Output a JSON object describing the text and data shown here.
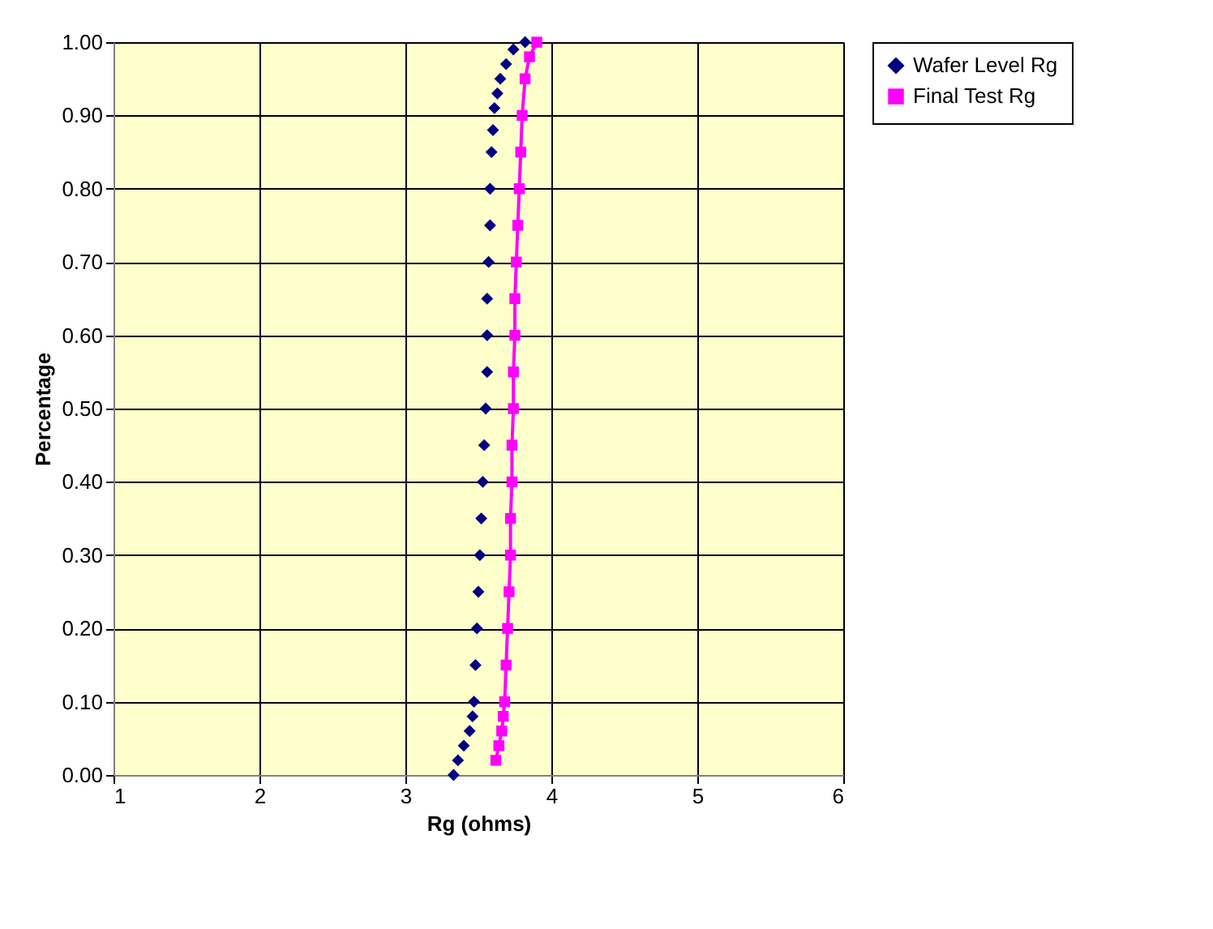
{
  "chart_data": {
    "type": "scatter",
    "xlabel": "Rg (ohms)",
    "ylabel": "Percentage",
    "xlim": [
      1,
      6
    ],
    "xticks": [
      1,
      2,
      3,
      4,
      5,
      6
    ],
    "ylim": [
      0,
      1
    ],
    "yticks": [
      {
        "value": 0,
        "label": "0.00"
      },
      {
        "value": 0.1,
        "label": "0.10"
      },
      {
        "value": 0.2,
        "label": "0.20"
      },
      {
        "value": 0.3,
        "label": "0.30"
      },
      {
        "value": 0.4,
        "label": "0.40"
      },
      {
        "value": 0.5,
        "label": "0.50"
      },
      {
        "value": 0.6,
        "label": "0.60"
      },
      {
        "value": 0.7,
        "label": "0.70"
      },
      {
        "value": 0.8,
        "label": "0.80"
      },
      {
        "value": 0.9,
        "label": "0.90"
      },
      {
        "value": 1,
        "label": "1.00"
      }
    ],
    "grid": true,
    "legend": "right",
    "series": [
      {
        "name": "Wafer Level Rg",
        "marker": "diamond",
        "color": "#000080",
        "x": [
          3.33,
          3.36,
          3.4,
          3.44,
          3.46,
          3.47,
          3.48,
          3.49,
          3.5,
          3.51,
          3.52,
          3.53,
          3.54,
          3.55,
          3.56,
          3.56,
          3.56,
          3.57,
          3.58,
          3.58,
          3.59,
          3.6,
          3.61,
          3.63,
          3.65,
          3.69,
          3.74,
          3.82
        ],
        "values": [
          0.0,
          0.02,
          0.04,
          0.06,
          0.08,
          0.1,
          0.15,
          0.2,
          0.25,
          0.3,
          0.35,
          0.4,
          0.45,
          0.5,
          0.55,
          0.6,
          0.65,
          0.7,
          0.75,
          0.8,
          0.85,
          0.88,
          0.91,
          0.93,
          0.95,
          0.97,
          0.99,
          1.0
        ]
      },
      {
        "name": "Final Test Rg",
        "type": "line",
        "marker": "square",
        "color": "#ff00ff",
        "x": [
          3.62,
          3.64,
          3.66,
          3.67,
          3.68,
          3.69,
          3.7,
          3.71,
          3.72,
          3.72,
          3.73,
          3.73,
          3.74,
          3.74,
          3.75,
          3.75,
          3.76,
          3.77,
          3.78,
          3.79,
          3.8,
          3.82,
          3.85,
          3.9
        ],
        "values": [
          0.02,
          0.04,
          0.06,
          0.08,
          0.1,
          0.15,
          0.2,
          0.25,
          0.3,
          0.35,
          0.4,
          0.45,
          0.5,
          0.55,
          0.6,
          0.65,
          0.7,
          0.75,
          0.8,
          0.85,
          0.9,
          0.95,
          0.98,
          1.0
        ]
      }
    ]
  }
}
